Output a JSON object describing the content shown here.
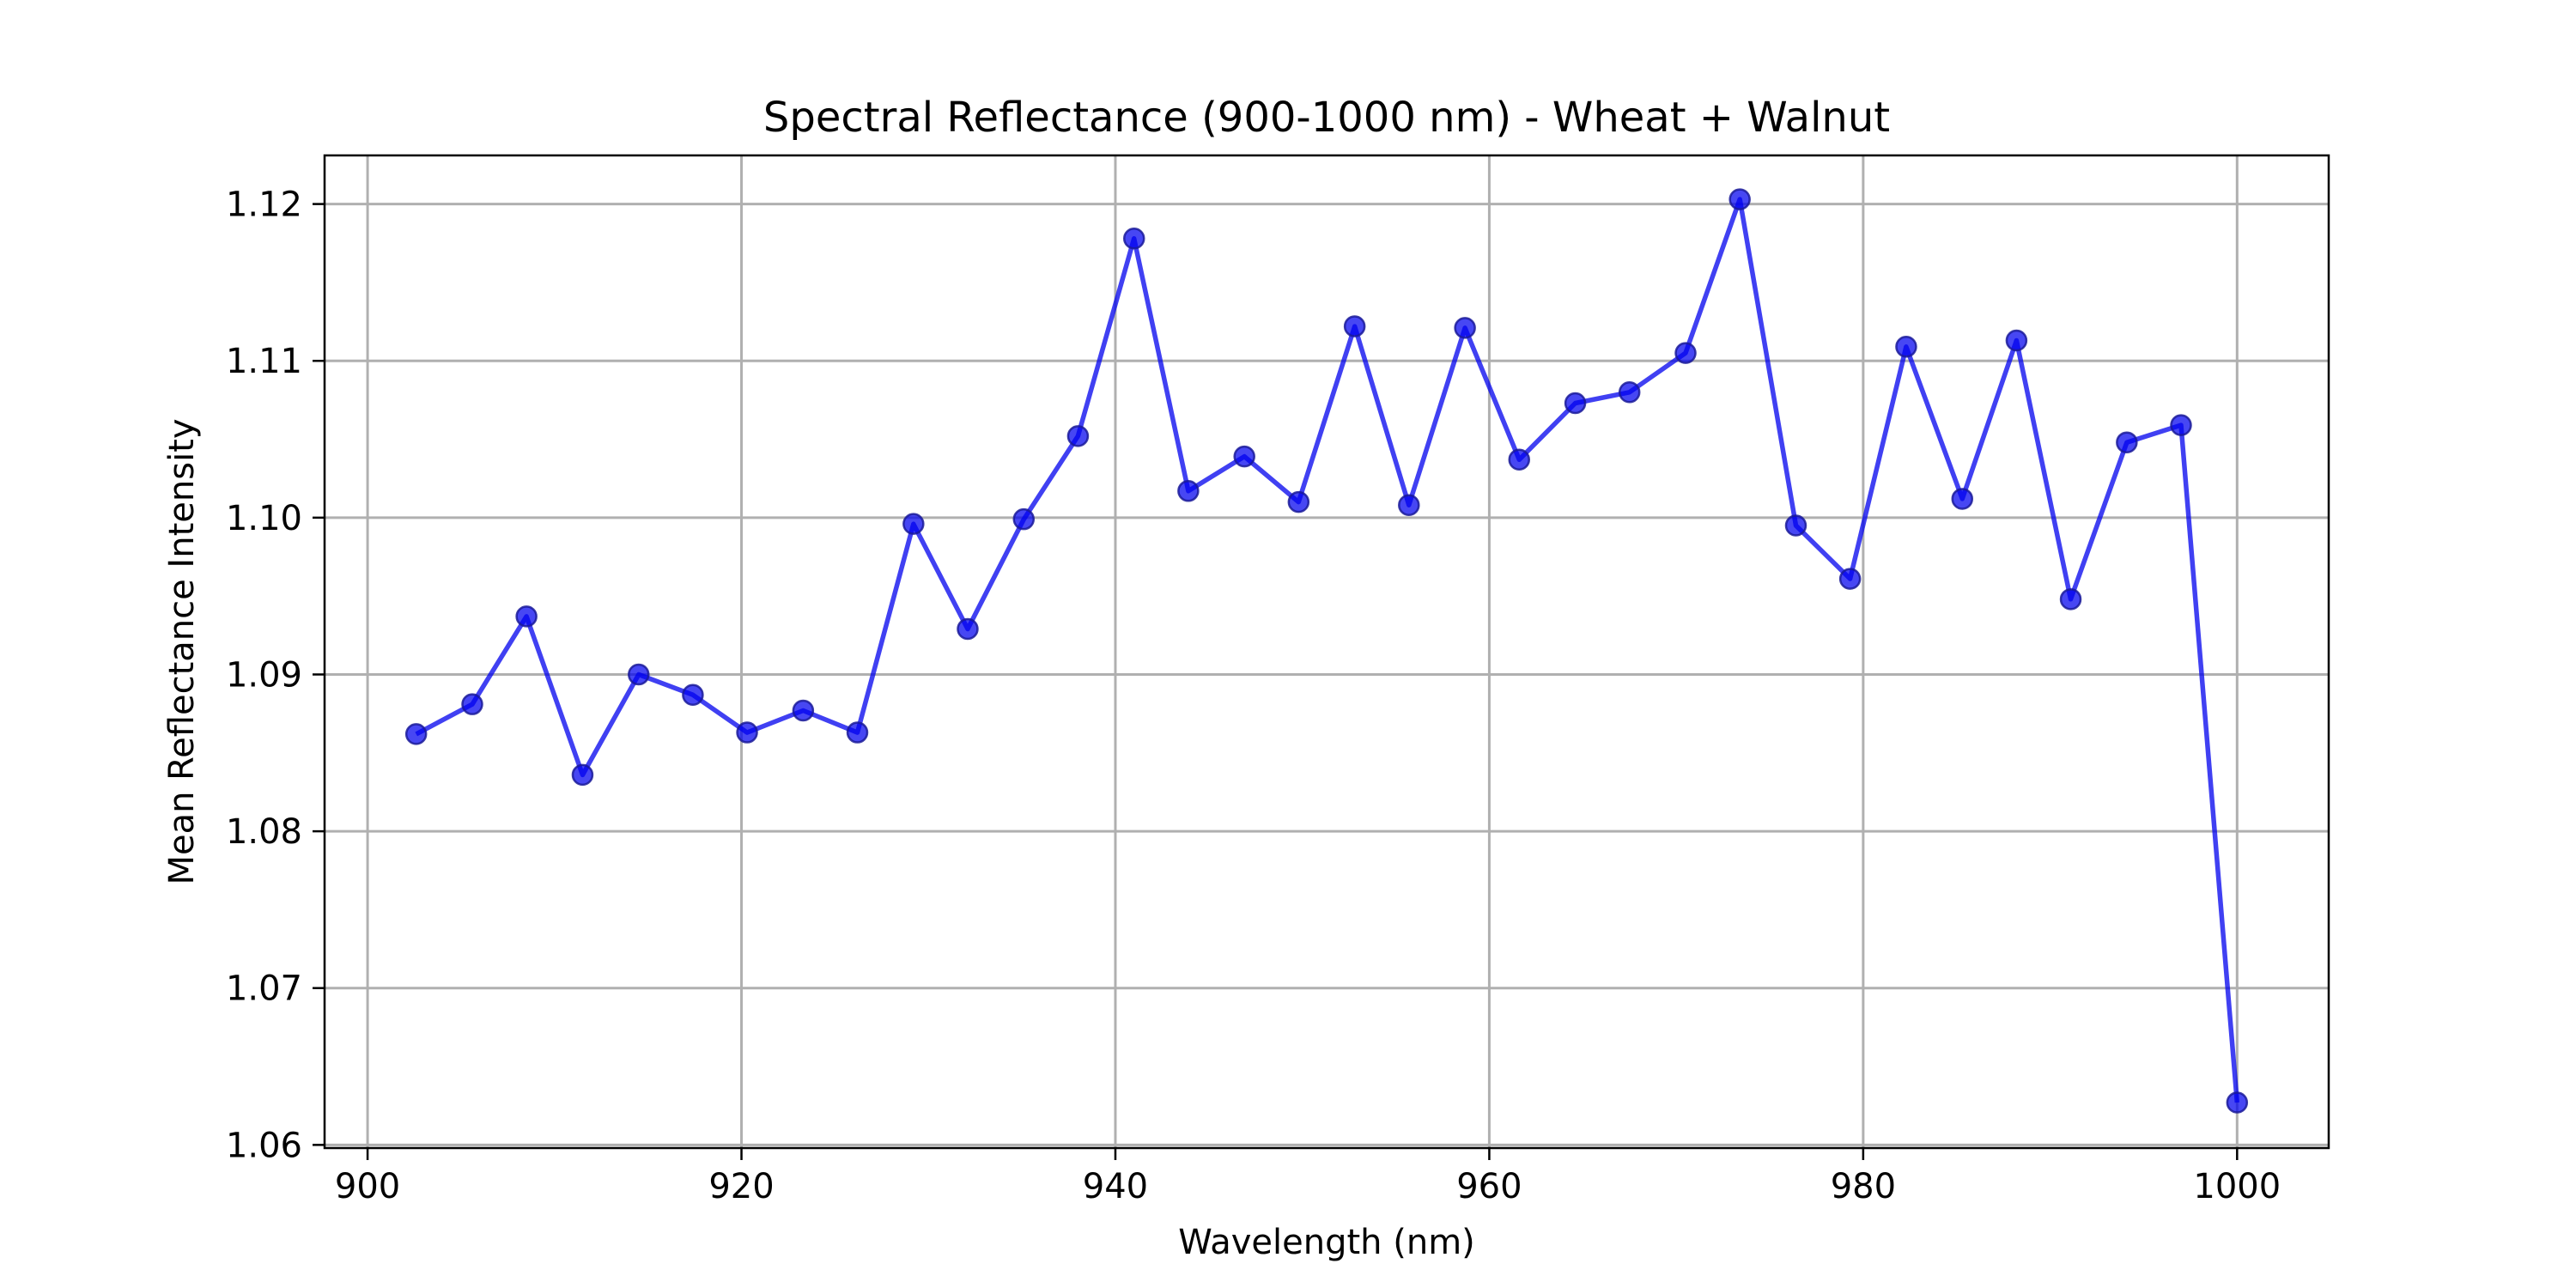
{
  "chart_data": {
    "type": "line",
    "title": "Spectral Reflectance (900-1000 nm) - Wheat + Walnut",
    "xlabel": "Wavelength (nm)",
    "ylabel": "Mean Reflectance Intensity",
    "xlim": [
      897.7,
      1004.9
    ],
    "ylim": [
      1.0598,
      1.1231
    ],
    "xticks": [
      900,
      920,
      940,
      960,
      980,
      1000
    ],
    "xtick_labels": [
      "900",
      "920",
      "940",
      "960",
      "980",
      "1000"
    ],
    "yticks": [
      1.06,
      1.07,
      1.08,
      1.09,
      1.1,
      1.11,
      1.12
    ],
    "ytick_labels": [
      "1.06",
      "1.07",
      "1.08",
      "1.09",
      "1.10",
      "1.11",
      "1.12"
    ],
    "grid": true,
    "color": "#0000ee",
    "series": [
      {
        "x": [
          902.6,
          905.6,
          908.5,
          911.5,
          914.5,
          917.4,
          920.3,
          923.3,
          926.2,
          929.2,
          932.1,
          935.1,
          938.0,
          941.0,
          943.9,
          946.9,
          949.8,
          952.8,
          955.7,
          958.7,
          961.6,
          964.6,
          967.5,
          970.5,
          973.4,
          976.4,
          979.3,
          982.3,
          985.3,
          988.2,
          991.1,
          994.1,
          997.0,
          1000.0
        ],
        "y": [
          1.0862,
          1.0881,
          1.0937,
          1.0836,
          1.09,
          1.0887,
          1.0863,
          1.0877,
          1.0863,
          1.0996,
          1.0929,
          1.0999,
          1.1052,
          1.1178,
          1.1017,
          1.1039,
          1.101,
          1.1122,
          1.1008,
          1.1121,
          1.1037,
          1.1073,
          1.108,
          1.1105,
          1.1203,
          1.0995,
          1.0961,
          1.1109,
          1.1012,
          1.1113,
          1.0948,
          1.1048,
          1.1059,
          1.0627
        ]
      }
    ]
  }
}
